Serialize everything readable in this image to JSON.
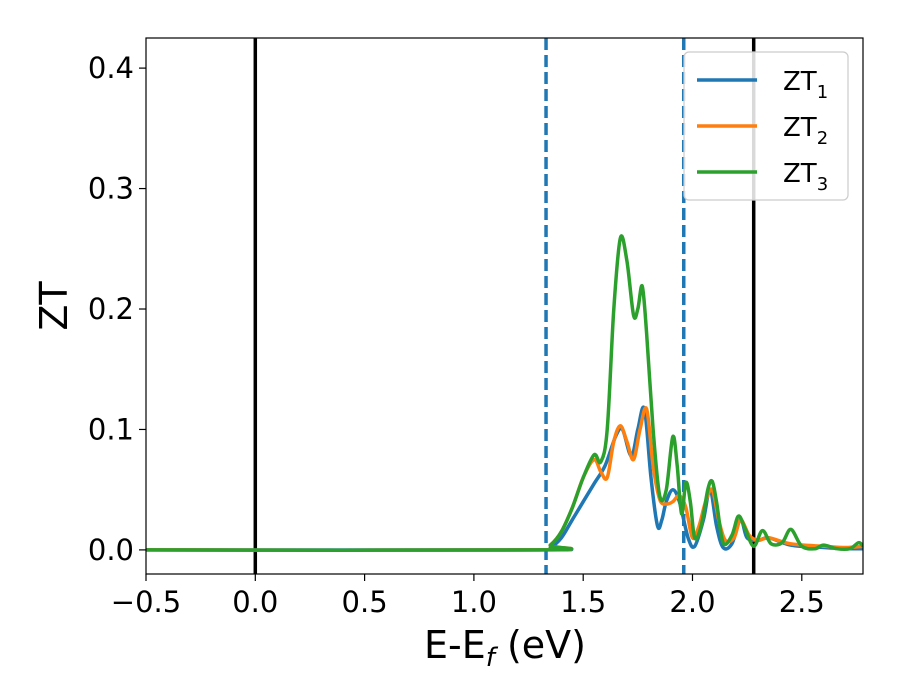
{
  "chart_data": {
    "type": "line",
    "xlabel": "E-E",
    "xlabel_sub": "f",
    "xlabel_unit": " (eV)",
    "ylabel": "ZT",
    "xlim": [
      -0.5,
      2.78
    ],
    "ylim": [
      -0.02,
      0.425
    ],
    "xticks": [
      -0.5,
      0.0,
      0.5,
      1.0,
      1.5,
      2.0,
      2.5
    ],
    "xtick_labels": [
      "−0.5",
      "0.0",
      "0.5",
      "1.0",
      "1.5",
      "2.0",
      "2.5"
    ],
    "yticks": [
      0.0,
      0.1,
      0.2,
      0.3,
      0.4
    ],
    "ytick_labels": [
      "0.0",
      "0.1",
      "0.2",
      "0.3",
      "0.4"
    ],
    "grid": false,
    "legend_position": "top-right",
    "vlines": [
      {
        "x": 0.0,
        "style": "solid",
        "color": "#000000"
      },
      {
        "x": 2.28,
        "style": "solid",
        "color": "#000000"
      },
      {
        "x": 1.33,
        "style": "dashed",
        "color": "#1f77b4"
      },
      {
        "x": 1.96,
        "style": "dashed",
        "color": "#1f77b4"
      }
    ],
    "series": [
      {
        "name": "ZT",
        "sub": "1",
        "color": "#1f77b4",
        "points": [
          [
            -0.5,
            0
          ],
          [
            1.3,
            0
          ],
          [
            1.35,
            0.002
          ],
          [
            1.4,
            0.01
          ],
          [
            1.45,
            0.025
          ],
          [
            1.5,
            0.04
          ],
          [
            1.55,
            0.055
          ],
          [
            1.6,
            0.07
          ],
          [
            1.65,
            0.095
          ],
          [
            1.68,
            0.1
          ],
          [
            1.72,
            0.078
          ],
          [
            1.75,
            0.1
          ],
          [
            1.78,
            0.117
          ],
          [
            1.81,
            0.06
          ],
          [
            1.84,
            0.02
          ],
          [
            1.86,
            0.025
          ],
          [
            1.88,
            0.04
          ],
          [
            1.91,
            0.05
          ],
          [
            1.94,
            0.04
          ],
          [
            1.98,
            0.01
          ],
          [
            2.01,
            0.003
          ],
          [
            2.05,
            0.025
          ],
          [
            2.08,
            0.05
          ],
          [
            2.11,
            0.02
          ],
          [
            2.14,
            0.002
          ],
          [
            2.18,
            0.005
          ],
          [
            2.22,
            0.025
          ],
          [
            2.25,
            0.01
          ],
          [
            2.3,
            0.008
          ],
          [
            2.35,
            0.01
          ],
          [
            2.45,
            0.004
          ],
          [
            2.6,
            0.002
          ],
          [
            2.7,
            0.001
          ],
          [
            2.78,
            0.001
          ]
        ]
      },
      {
        "name": "ZT",
        "sub": "2",
        "color": "#ff7f0e",
        "points": [
          [
            -0.5,
            0
          ],
          [
            1.3,
            0
          ],
          [
            1.35,
            0.004
          ],
          [
            1.4,
            0.015
          ],
          [
            1.45,
            0.035
          ],
          [
            1.5,
            0.06
          ],
          [
            1.55,
            0.075
          ],
          [
            1.58,
            0.065
          ],
          [
            1.61,
            0.06
          ],
          [
            1.64,
            0.09
          ],
          [
            1.67,
            0.103
          ],
          [
            1.7,
            0.09
          ],
          [
            1.73,
            0.075
          ],
          [
            1.76,
            0.1
          ],
          [
            1.79,
            0.117
          ],
          [
            1.82,
            0.07
          ],
          [
            1.85,
            0.042
          ],
          [
            1.88,
            0.038
          ],
          [
            1.91,
            0.04
          ],
          [
            1.94,
            0.045
          ],
          [
            1.97,
            0.035
          ],
          [
            2.0,
            0.01
          ],
          [
            2.03,
            0.02
          ],
          [
            2.06,
            0.04
          ],
          [
            2.09,
            0.05
          ],
          [
            2.12,
            0.025
          ],
          [
            2.15,
            0.008
          ],
          [
            2.19,
            0.01
          ],
          [
            2.22,
            0.025
          ],
          [
            2.26,
            0.012
          ],
          [
            2.3,
            0.008
          ],
          [
            2.35,
            0.01
          ],
          [
            2.45,
            0.005
          ],
          [
            2.6,
            0.003
          ],
          [
            2.7,
            0.002
          ],
          [
            2.78,
            0.003
          ]
        ]
      },
      {
        "name": "ZT",
        "sub": "3",
        "color": "#2ca02c",
        "points": [
          [
            -0.5,
            0
          ],
          [
            1.3,
            0
          ],
          [
            1.35,
            0.004
          ],
          [
            1.4,
            0.015
          ],
          [
            1.45,
            0.035
          ],
          [
            1.5,
            0.06
          ],
          [
            1.55,
            0.079
          ],
          [
            1.58,
            0.073
          ],
          [
            1.61,
            0.1
          ],
          [
            1.64,
            0.2
          ],
          [
            1.67,
            0.259
          ],
          [
            1.7,
            0.24
          ],
          [
            1.73,
            0.195
          ],
          [
            1.75,
            0.2
          ],
          [
            1.77,
            0.219
          ],
          [
            1.79,
            0.18
          ],
          [
            1.82,
            0.1
          ],
          [
            1.85,
            0.045
          ],
          [
            1.88,
            0.05
          ],
          [
            1.91,
            0.094
          ],
          [
            1.93,
            0.07
          ],
          [
            1.95,
            0.03
          ],
          [
            1.97,
            0.056
          ],
          [
            1.99,
            0.04
          ],
          [
            2.01,
            0.01
          ],
          [
            2.04,
            0.02
          ],
          [
            2.07,
            0.05
          ],
          [
            2.09,
            0.057
          ],
          [
            2.11,
            0.04
          ],
          [
            2.14,
            0.006
          ],
          [
            2.18,
            0.012
          ],
          [
            2.21,
            0.028
          ],
          [
            2.24,
            0.018
          ],
          [
            2.28,
            0.003
          ],
          [
            2.32,
            0.016
          ],
          [
            2.36,
            0.005
          ],
          [
            2.41,
            0.006
          ],
          [
            2.45,
            0.017
          ],
          [
            2.5,
            0.003
          ],
          [
            2.56,
            0.001
          ],
          [
            2.6,
            0.004
          ],
          [
            2.66,
            0.001
          ],
          [
            2.72,
            0.001
          ],
          [
            2.76,
            0.006
          ],
          [
            2.78,
            0.003
          ]
        ]
      }
    ]
  }
}
